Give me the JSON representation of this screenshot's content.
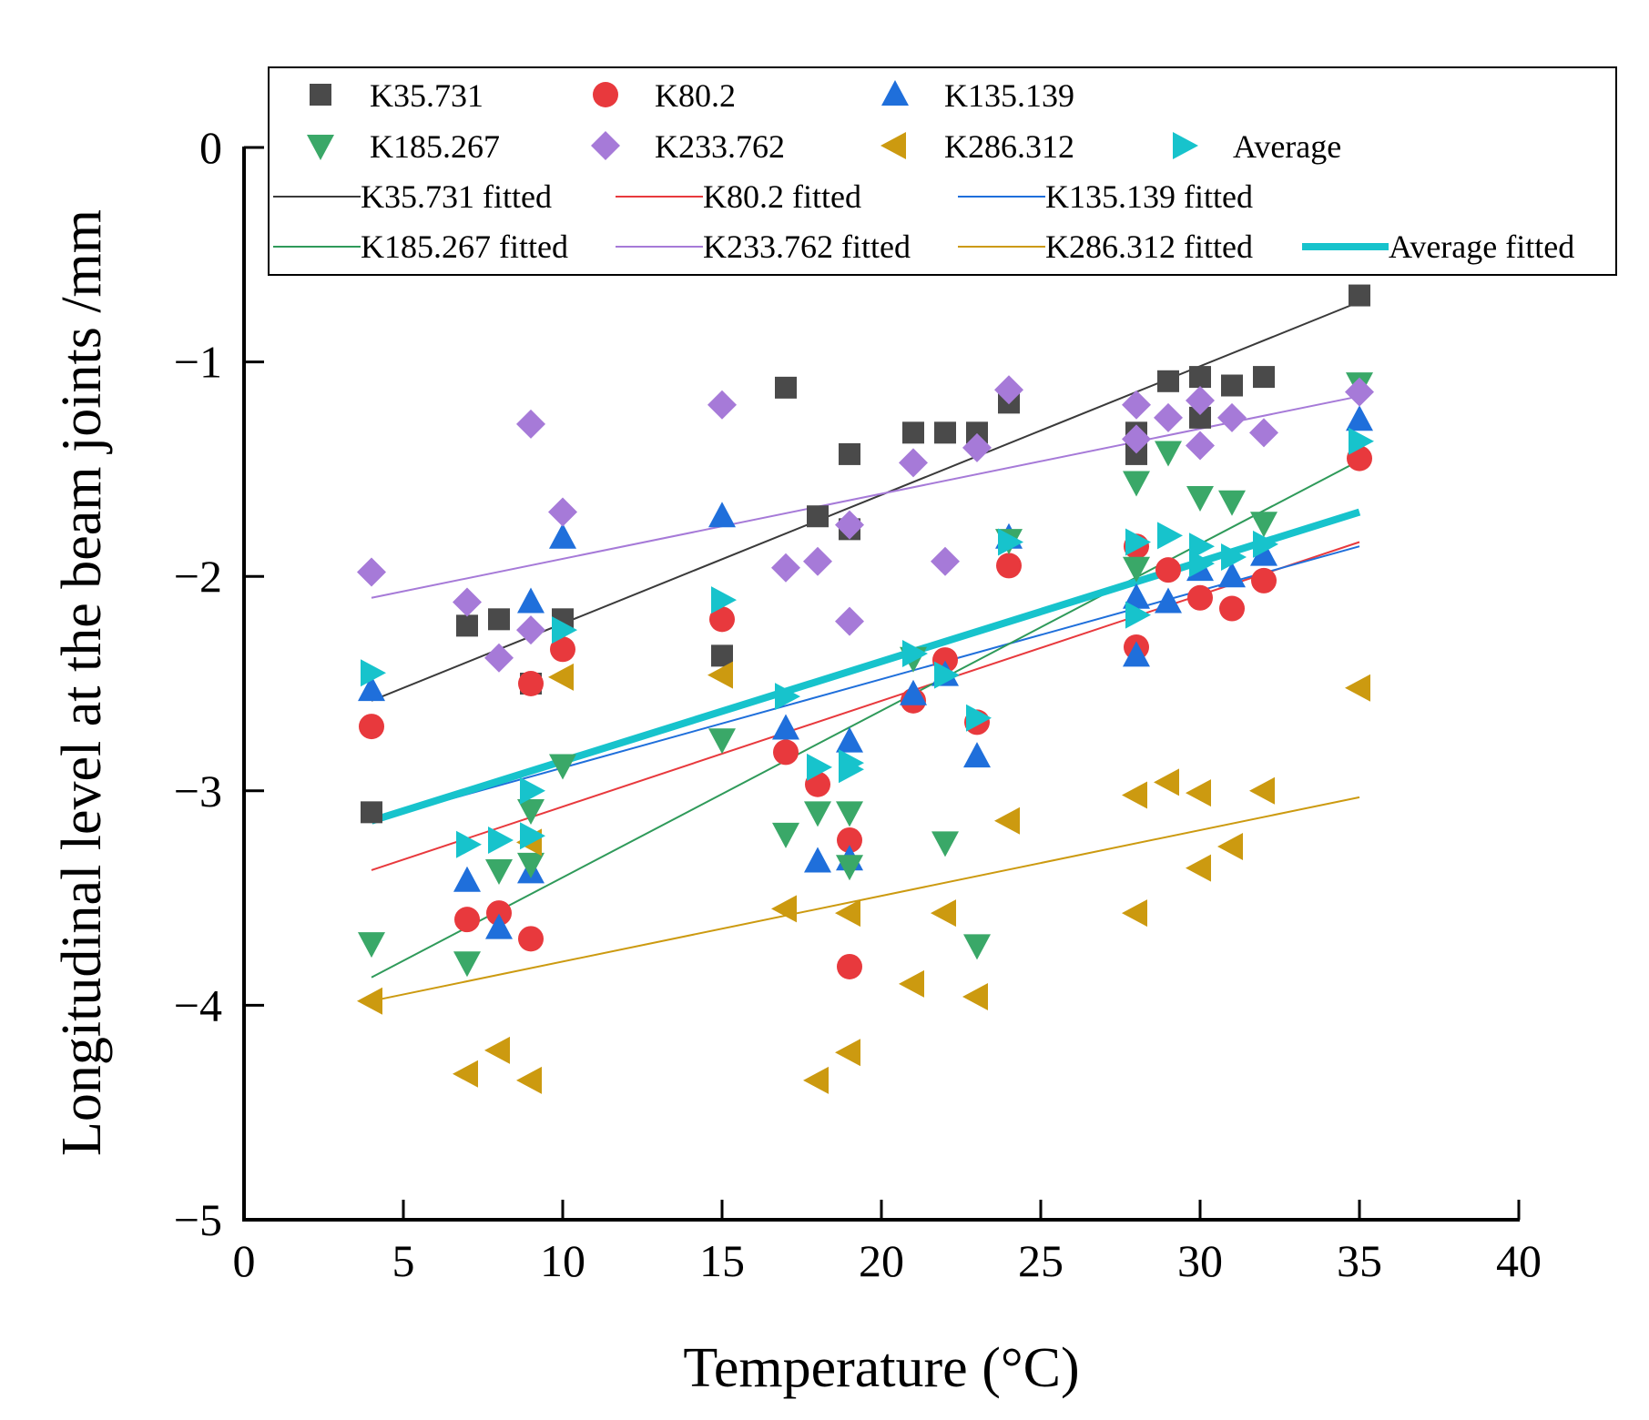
{
  "chart_data": {
    "type": "scatter",
    "title": "",
    "xlabel": "Temperature (°C)",
    "ylabel": "Longitudinal level at the beam joints /mm",
    "xlim": [
      0,
      40
    ],
    "ylim": [
      -5,
      0
    ],
    "xticks": [
      0,
      5,
      10,
      15,
      20,
      25,
      30,
      35,
      40
    ],
    "yticks": [
      0,
      -1,
      -2,
      -3,
      -4,
      -5
    ],
    "xtick_labels": [
      "0",
      "5",
      "10",
      "15",
      "20",
      "25",
      "30",
      "35",
      "40"
    ],
    "ytick_labels": [
      "0",
      "−1",
      "−2",
      "−3",
      "−4",
      "−5"
    ],
    "grid": false,
    "legend_position": "top",
    "series": [
      {
        "name": "K35.731",
        "marker": "square",
        "color": "#4a4a4a",
        "x": [
          4,
          7,
          8,
          9,
          10,
          15,
          17,
          18,
          19,
          19,
          21,
          22,
          23,
          24,
          28,
          28,
          29,
          30,
          30,
          31,
          32,
          35
        ],
        "y": [
          -3.1,
          -2.23,
          -2.2,
          -2.5,
          -2.2,
          -2.37,
          -1.12,
          -1.72,
          -1.43,
          -1.78,
          -1.33,
          -1.33,
          -1.33,
          -1.19,
          -1.43,
          -1.33,
          -1.09,
          -1.07,
          -1.26,
          -1.11,
          -1.07,
          -0.69
        ],
        "fit_label": "K35.731 fitted",
        "fit_color": "#3a3a3a",
        "fit_width": 2,
        "fit": [
          [
            4,
            -2.58
          ],
          [
            35,
            -0.72
          ]
        ]
      },
      {
        "name": "K80.2",
        "marker": "circle",
        "color": "#e8393d",
        "x": [
          4,
          7,
          8,
          9,
          9,
          10,
          15,
          17,
          18,
          19,
          19,
          21,
          22,
          23,
          24,
          28,
          28,
          29,
          30,
          31,
          32,
          35
        ],
        "y": [
          -2.7,
          -3.6,
          -3.57,
          -3.69,
          -2.5,
          -2.34,
          -2.2,
          -2.82,
          -2.97,
          -3.23,
          -3.82,
          -2.58,
          -2.39,
          -2.68,
          -1.95,
          -1.86,
          -2.33,
          -1.97,
          -2.1,
          -2.15,
          -2.02,
          -1.45
        ],
        "fit_label": "K80.2 fitted",
        "fit_color": "#e8393d",
        "fit_width": 2,
        "fit": [
          [
            4,
            -3.37
          ],
          [
            35,
            -1.84
          ]
        ]
      },
      {
        "name": "K135.139",
        "marker": "triangle-up",
        "color": "#1f6fdb",
        "x": [
          4,
          7,
          8,
          9,
          9,
          10,
          15,
          17,
          18,
          19,
          19,
          21,
          22,
          23,
          24,
          28,
          28,
          29,
          30,
          31,
          32,
          35
        ],
        "y": [
          -2.53,
          -3.42,
          -3.64,
          -2.12,
          -3.38,
          -1.82,
          -1.72,
          -2.71,
          -3.33,
          -2.77,
          -3.32,
          -2.55,
          -2.46,
          -2.84,
          -1.82,
          -2.1,
          -2.37,
          -2.12,
          -1.97,
          -2.0,
          -1.9,
          -1.27
        ],
        "fit_label": "K135.139 fitted",
        "fit_color": "#1f6fdb",
        "fit_width": 2,
        "fit": [
          [
            4,
            -3.14
          ],
          [
            35,
            -1.86
          ]
        ]
      },
      {
        "name": "K185.267",
        "marker": "triangle-down",
        "color": "#3aa868",
        "x": [
          4,
          7,
          8,
          9,
          9,
          10,
          15,
          17,
          18,
          19,
          19,
          21,
          22,
          23,
          24,
          28,
          28,
          29,
          30,
          31,
          32,
          35
        ],
        "y": [
          -3.71,
          -3.8,
          -3.37,
          -3.09,
          -3.34,
          -2.88,
          -2.76,
          -3.2,
          -3.1,
          -3.1,
          -3.35,
          -2.38,
          -3.24,
          -3.72,
          -1.83,
          -1.56,
          -1.96,
          -1.42,
          -1.63,
          -1.65,
          -1.75,
          -1.1
        ],
        "fit_label": "K185.267 fitted",
        "fit_color": "#2f9a5a",
        "fit_width": 2,
        "fit": [
          [
            4,
            -3.87
          ],
          [
            35,
            -1.46
          ]
        ]
      },
      {
        "name": "K233.762",
        "marker": "diamond",
        "color": "#a67ad8",
        "x": [
          4,
          7,
          8,
          9,
          9,
          10,
          15,
          17,
          18,
          19,
          19,
          21,
          22,
          23,
          24,
          28,
          28,
          29,
          30,
          30,
          31,
          32,
          35
        ],
        "y": [
          -1.98,
          -2.12,
          -2.38,
          -1.29,
          -2.25,
          -1.7,
          -1.2,
          -1.96,
          -1.93,
          -1.76,
          -2.21,
          -1.47,
          -1.93,
          -1.4,
          -1.13,
          -1.36,
          -1.2,
          -1.26,
          -1.18,
          -1.39,
          -1.26,
          -1.33,
          -1.14
        ],
        "fit_label": "K233.762 fitted",
        "fit_color": "#a67ad8",
        "fit_width": 2,
        "fit": [
          [
            4,
            -2.1
          ],
          [
            35,
            -1.16
          ]
        ]
      },
      {
        "name": "K286.312",
        "marker": "triangle-left",
        "color": "#cc9a10",
        "x": [
          4,
          7,
          8,
          9,
          9,
          10,
          15,
          17,
          18,
          19,
          19,
          21,
          22,
          23,
          24,
          28,
          28,
          29,
          30,
          30,
          31,
          32,
          35
        ],
        "y": [
          -3.98,
          -4.32,
          -4.21,
          -4.35,
          -3.24,
          -2.47,
          -2.46,
          -3.55,
          -4.35,
          -3.57,
          -4.22,
          -3.9,
          -3.57,
          -3.96,
          -3.14,
          -3.57,
          -3.02,
          -2.96,
          -3.01,
          -3.36,
          -3.26,
          -3.0,
          -2.52
        ],
        "fit_label": "K286.312 fitted",
        "fit_color": "#cc9a10",
        "fit_width": 2,
        "fit": [
          [
            4,
            -3.98
          ],
          [
            35,
            -3.03
          ]
        ]
      },
      {
        "name": "Average",
        "marker": "triangle-right",
        "color": "#17c3cc",
        "x": [
          4,
          7,
          8,
          9,
          9,
          10,
          15,
          17,
          18,
          19,
          19,
          21,
          22,
          23,
          24,
          28,
          28,
          29,
          30,
          30,
          31,
          32,
          35
        ],
        "y": [
          -2.45,
          -3.25,
          -3.23,
          -3.0,
          -3.21,
          -2.25,
          -2.11,
          -2.56,
          -2.89,
          -2.87,
          -2.9,
          -2.36,
          -2.46,
          -2.66,
          -1.84,
          -1.84,
          -2.18,
          -1.81,
          -1.86,
          -1.94,
          -1.91,
          -1.85,
          -1.37
        ],
        "fit_label": "Average fitted",
        "fit_color": "#17c3cc",
        "fit_width": 8,
        "fit": [
          [
            4,
            -3.14
          ],
          [
            35,
            -1.7
          ]
        ]
      }
    ]
  }
}
